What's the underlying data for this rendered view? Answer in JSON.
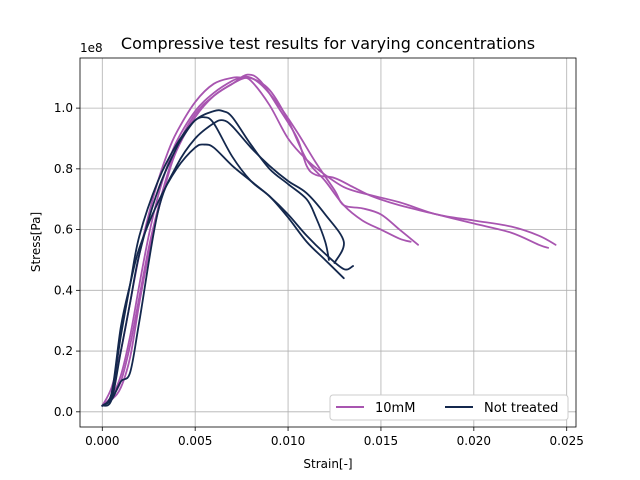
{
  "chart_data": {
    "type": "line",
    "title": "Compressive test results for varying concentrations",
    "xlabel": "Strain[-]",
    "ylabel": "Stress[Pa]",
    "y_offset_label": "1e8",
    "xlim": [
      -0.0012,
      0.0255
    ],
    "ylim": [
      -0.05,
      1.165
    ],
    "grid": true,
    "legend_position": "lower-right",
    "x_ticks": [
      0.0,
      0.005,
      0.01,
      0.015,
      0.02,
      0.025
    ],
    "x_tick_labels": [
      "0.000",
      "0.005",
      "0.010",
      "0.015",
      "0.020",
      "0.025"
    ],
    "y_ticks": [
      0.0,
      0.2,
      0.4,
      0.6,
      0.8,
      1.0
    ],
    "y_tick_labels": [
      "0.0",
      "0.2",
      "0.4",
      "0.6",
      "0.8",
      "1.0"
    ],
    "legend": [
      {
        "label": "10mM",
        "color": "#a855b0"
      },
      {
        "label": "Not treated",
        "color": "#14284d"
      }
    ],
    "series": [
      {
        "name": "10mM",
        "color": "#a855b0",
        "points": [
          [
            0,
            0.02
          ],
          [
            0.0005,
            0.05
          ],
          [
            0.001,
            0.12
          ],
          [
            0.0015,
            0.25
          ],
          [
            0.002,
            0.42
          ],
          [
            0.0025,
            0.58
          ],
          [
            0.003,
            0.71
          ],
          [
            0.0035,
            0.81
          ],
          [
            0.004,
            0.89
          ],
          [
            0.005,
            0.99
          ],
          [
            0.006,
            1.05
          ],
          [
            0.007,
            1.09
          ],
          [
            0.0075,
            1.1
          ],
          [
            0.008,
            1.1
          ],
          [
            0.009,
            1.06
          ],
          [
            0.01,
            0.96
          ],
          [
            0.011,
            0.83
          ],
          [
            0.012,
            0.76
          ],
          [
            0.013,
            0.68
          ],
          [
            0.014,
            0.63
          ],
          [
            0.015,
            0.6
          ],
          [
            0.016,
            0.57
          ],
          [
            0.0166,
            0.56
          ]
        ]
      },
      {
        "name": "10mM",
        "color": "#a855b0",
        "points": [
          [
            0,
            0.02
          ],
          [
            0.0005,
            0.05
          ],
          [
            0.001,
            0.1
          ],
          [
            0.0015,
            0.22
          ],
          [
            0.002,
            0.38
          ],
          [
            0.0025,
            0.54
          ],
          [
            0.003,
            0.67
          ],
          [
            0.0035,
            0.78
          ],
          [
            0.004,
            0.87
          ],
          [
            0.005,
            0.98
          ],
          [
            0.006,
            1.04
          ],
          [
            0.007,
            1.08
          ],
          [
            0.0078,
            1.1
          ],
          [
            0.0085,
            1.08
          ],
          [
            0.0095,
            1.01
          ],
          [
            0.0105,
            0.92
          ],
          [
            0.0115,
            0.82
          ],
          [
            0.0125,
            0.73
          ],
          [
            0.013,
            0.68
          ],
          [
            0.014,
            0.67
          ],
          [
            0.015,
            0.65
          ],
          [
            0.016,
            0.6
          ],
          [
            0.017,
            0.55
          ]
        ]
      },
      {
        "name": "10mM",
        "color": "#a855b0",
        "points": [
          [
            0,
            0.02
          ],
          [
            0.0005,
            0.04
          ],
          [
            0.001,
            0.08
          ],
          [
            0.0015,
            0.18
          ],
          [
            0.002,
            0.36
          ],
          [
            0.0025,
            0.52
          ],
          [
            0.003,
            0.66
          ],
          [
            0.0035,
            0.77
          ],
          [
            0.004,
            0.86
          ],
          [
            0.005,
            0.97
          ],
          [
            0.006,
            1.04
          ],
          [
            0.007,
            1.08
          ],
          [
            0.0078,
            1.11
          ],
          [
            0.0085,
            1.09
          ],
          [
            0.0095,
            1.0
          ],
          [
            0.0105,
            0.9
          ],
          [
            0.011,
            0.81
          ],
          [
            0.0115,
            0.78
          ],
          [
            0.0125,
            0.77
          ],
          [
            0.0135,
            0.74
          ],
          [
            0.0145,
            0.71
          ],
          [
            0.016,
            0.68
          ],
          [
            0.018,
            0.65
          ],
          [
            0.02,
            0.62
          ],
          [
            0.022,
            0.59
          ],
          [
            0.0235,
            0.55
          ],
          [
            0.024,
            0.54
          ]
        ]
      },
      {
        "name": "10mM",
        "color": "#a855b0",
        "points": [
          [
            0,
            0.02
          ],
          [
            0.0005,
            0.08
          ],
          [
            0.001,
            0.2
          ],
          [
            0.0015,
            0.36
          ],
          [
            0.002,
            0.52
          ],
          [
            0.0025,
            0.65
          ],
          [
            0.003,
            0.76
          ],
          [
            0.0035,
            0.85
          ],
          [
            0.004,
            0.92
          ],
          [
            0.005,
            1.02
          ],
          [
            0.006,
            1.08
          ],
          [
            0.007,
            1.1
          ],
          [
            0.0075,
            1.1
          ],
          [
            0.008,
            1.09
          ],
          [
            0.009,
            1.01
          ],
          [
            0.01,
            0.9
          ],
          [
            0.011,
            0.83
          ],
          [
            0.012,
            0.78
          ],
          [
            0.013,
            0.74
          ],
          [
            0.014,
            0.72
          ],
          [
            0.016,
            0.69
          ],
          [
            0.018,
            0.65
          ],
          [
            0.02,
            0.63
          ],
          [
            0.022,
            0.61
          ],
          [
            0.0235,
            0.58
          ],
          [
            0.0244,
            0.55
          ]
        ]
      },
      {
        "name": "Not treated",
        "color": "#14284d",
        "points": [
          [
            0,
            0.02
          ],
          [
            0.0005,
            0.06
          ],
          [
            0.001,
            0.28
          ],
          [
            0.0015,
            0.42
          ],
          [
            0.002,
            0.54
          ],
          [
            0.003,
            0.69
          ],
          [
            0.004,
            0.8
          ],
          [
            0.005,
            0.87
          ],
          [
            0.0055,
            0.88
          ],
          [
            0.006,
            0.87
          ],
          [
            0.007,
            0.81
          ],
          [
            0.008,
            0.76
          ],
          [
            0.009,
            0.71
          ],
          [
            0.01,
            0.65
          ],
          [
            0.011,
            0.58
          ],
          [
            0.012,
            0.52
          ],
          [
            0.013,
            0.47
          ],
          [
            0.0135,
            0.48
          ]
        ]
      },
      {
        "name": "Not treated",
        "color": "#14284d",
        "points": [
          [
            0,
            0.02
          ],
          [
            0.0005,
            0.04
          ],
          [
            0.001,
            0.2
          ],
          [
            0.0015,
            0.36
          ],
          [
            0.002,
            0.52
          ],
          [
            0.003,
            0.73
          ],
          [
            0.004,
            0.87
          ],
          [
            0.0045,
            0.92
          ],
          [
            0.005,
            0.96
          ],
          [
            0.0055,
            0.97
          ],
          [
            0.006,
            0.95
          ],
          [
            0.007,
            0.84
          ],
          [
            0.008,
            0.76
          ],
          [
            0.009,
            0.71
          ],
          [
            0.01,
            0.64
          ],
          [
            0.011,
            0.56
          ],
          [
            0.012,
            0.5
          ],
          [
            0.013,
            0.44
          ]
        ]
      },
      {
        "name": "Not treated",
        "color": "#14284d",
        "points": [
          [
            0,
            0.02
          ],
          [
            0.0005,
            0.06
          ],
          [
            0.001,
            0.25
          ],
          [
            0.0015,
            0.42
          ],
          [
            0.002,
            0.58
          ],
          [
            0.003,
            0.76
          ],
          [
            0.004,
            0.88
          ],
          [
            0.005,
            0.96
          ],
          [
            0.006,
            0.99
          ],
          [
            0.0065,
            0.99
          ],
          [
            0.007,
            0.97
          ],
          [
            0.008,
            0.88
          ],
          [
            0.009,
            0.8
          ],
          [
            0.01,
            0.75
          ],
          [
            0.011,
            0.7
          ],
          [
            0.0115,
            0.64
          ],
          [
            0.012,
            0.56
          ],
          [
            0.0122,
            0.5
          ]
        ]
      },
      {
        "name": "Not treated",
        "color": "#14284d",
        "points": [
          [
            0,
            0.02
          ],
          [
            0.0005,
            0.04
          ],
          [
            0.001,
            0.1
          ],
          [
            0.0015,
            0.13
          ],
          [
            0.002,
            0.3
          ],
          [
            0.003,
            0.66
          ],
          [
            0.004,
            0.81
          ],
          [
            0.005,
            0.9
          ],
          [
            0.006,
            0.95
          ],
          [
            0.0065,
            0.96
          ],
          [
            0.007,
            0.94
          ],
          [
            0.008,
            0.87
          ],
          [
            0.009,
            0.81
          ],
          [
            0.01,
            0.76
          ],
          [
            0.011,
            0.72
          ],
          [
            0.012,
            0.65
          ],
          [
            0.013,
            0.56
          ],
          [
            0.0125,
            0.49
          ]
        ]
      }
    ]
  }
}
